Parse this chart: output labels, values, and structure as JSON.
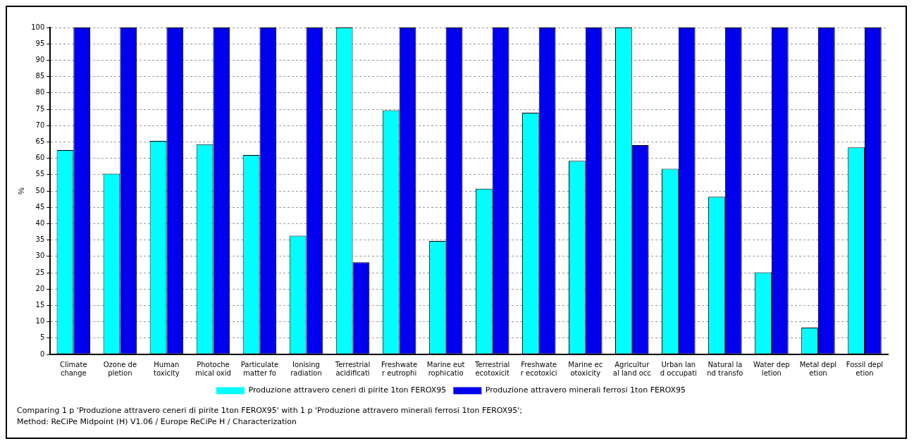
{
  "chart_data": {
    "type": "bar",
    "ylabel": "%",
    "categories": [
      "Climate\nchange",
      "Ozone de\npletion",
      "Human\ntoxicity",
      "Photoche\nmical oxid",
      "Particulate\nmatter fo",
      "Ionising\nradiation",
      "Terrestrial\nacidificati",
      "Freshwate\nr eutrophi",
      "Marine eut\nrophicatio",
      "Terrestrial\necotoxicit",
      "Freshwate\nr ecotoxici",
      "Marine ec\notoxicity",
      "Agricultur\nal land occ",
      "Urban lan\nd occupati",
      "Natural la\nnd transfo",
      "Water dep\nletion",
      "Metal depl\netion",
      "Fossil depl\netion"
    ],
    "series": [
      {
        "name": "Produzione attravero ceneri di pirite 1ton FEROX95",
        "color": "#00ffff",
        "values": [
          62.5,
          55.3,
          65.3,
          64.3,
          61,
          36.3,
          100,
          74.7,
          34.7,
          50.7,
          73.9,
          59.2,
          100,
          56.8,
          48.2,
          25.1,
          8.2,
          63.3
        ]
      },
      {
        "name": "Produzione attravero minerali ferrosi 1ton FEROX95",
        "color": "#0000ee",
        "values": [
          100,
          100,
          100,
          100,
          100,
          100,
          28.2,
          100,
          100,
          100,
          100,
          100,
          64,
          100,
          100,
          100,
          100,
          100
        ]
      }
    ],
    "ylim": [
      0,
      100
    ],
    "yticks": [
      0,
      5,
      10,
      15,
      20,
      25,
      30,
      35,
      40,
      45,
      50,
      55,
      60,
      65,
      70,
      75,
      80,
      85,
      90,
      95,
      100
    ],
    "grid": "y",
    "legend": "bottom",
    "annotations": [
      "Comparing 1 p 'Produzione attravero ceneri di pirite 1ton FEROX95' with 1 p 'Produzione attravero minerali ferrosi 1ton FEROX95';",
      "Method: ReCiPe Midpoint (H) V1.06 / Europe ReCiPe H / Characterization"
    ]
  }
}
